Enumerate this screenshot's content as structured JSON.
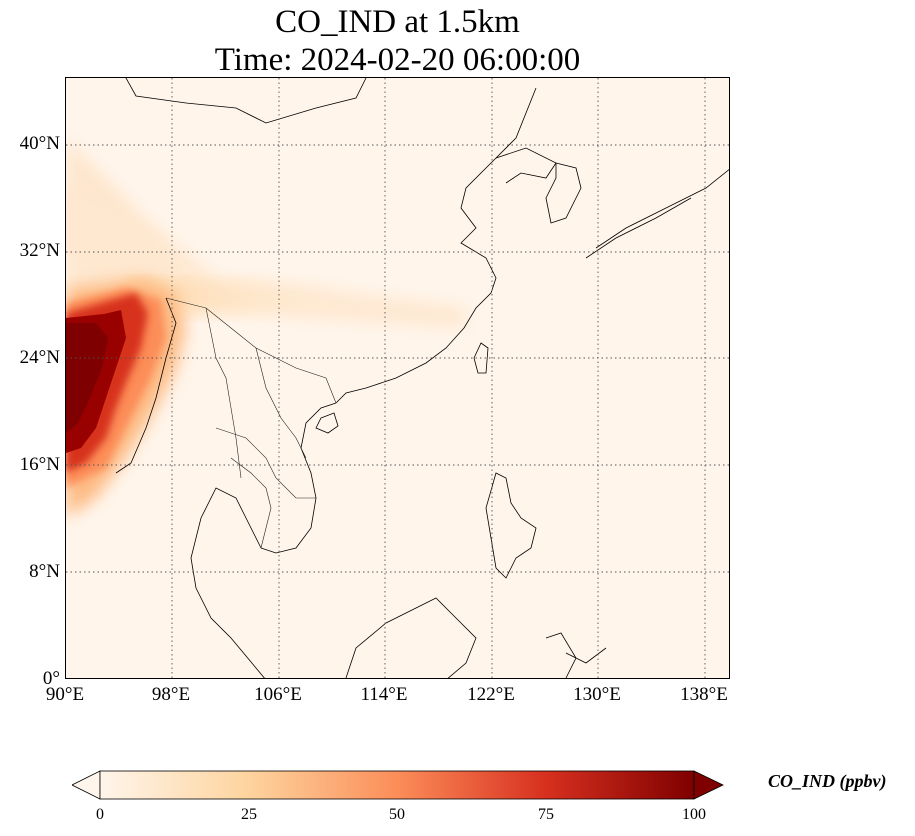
{
  "title": {
    "line1": "CO_IND at 1.5km",
    "line2": "Time: 2024-02-20 06:00:00"
  },
  "map": {
    "variable": "CO_IND",
    "level": "1.5km",
    "extent": {
      "lon_min": 90,
      "lon_max": 140,
      "lat_min": 0,
      "lat_max": 45
    },
    "lon_ticks": [
      "90°E",
      "98°E",
      "106°E",
      "114°E",
      "122°E",
      "130°E",
      "138°E"
    ],
    "lat_ticks": [
      "0°",
      "8°N",
      "16°N",
      "24°N",
      "32°N",
      "40°N"
    ],
    "gridlines": "dotted",
    "high_concentration_region": "Myanmar / Bay of Bengal (west edge)"
  },
  "colorbar": {
    "label": "CO_IND (ppbv)",
    "ticks": [
      "0",
      "25",
      "50",
      "75",
      "100"
    ],
    "min": 0,
    "max": 100,
    "extend": "both",
    "colormap": "OrRd",
    "colors": [
      "#fff5eb",
      "#fdd49e",
      "#fc8d59",
      "#d7301f",
      "#7f0000"
    ]
  }
}
